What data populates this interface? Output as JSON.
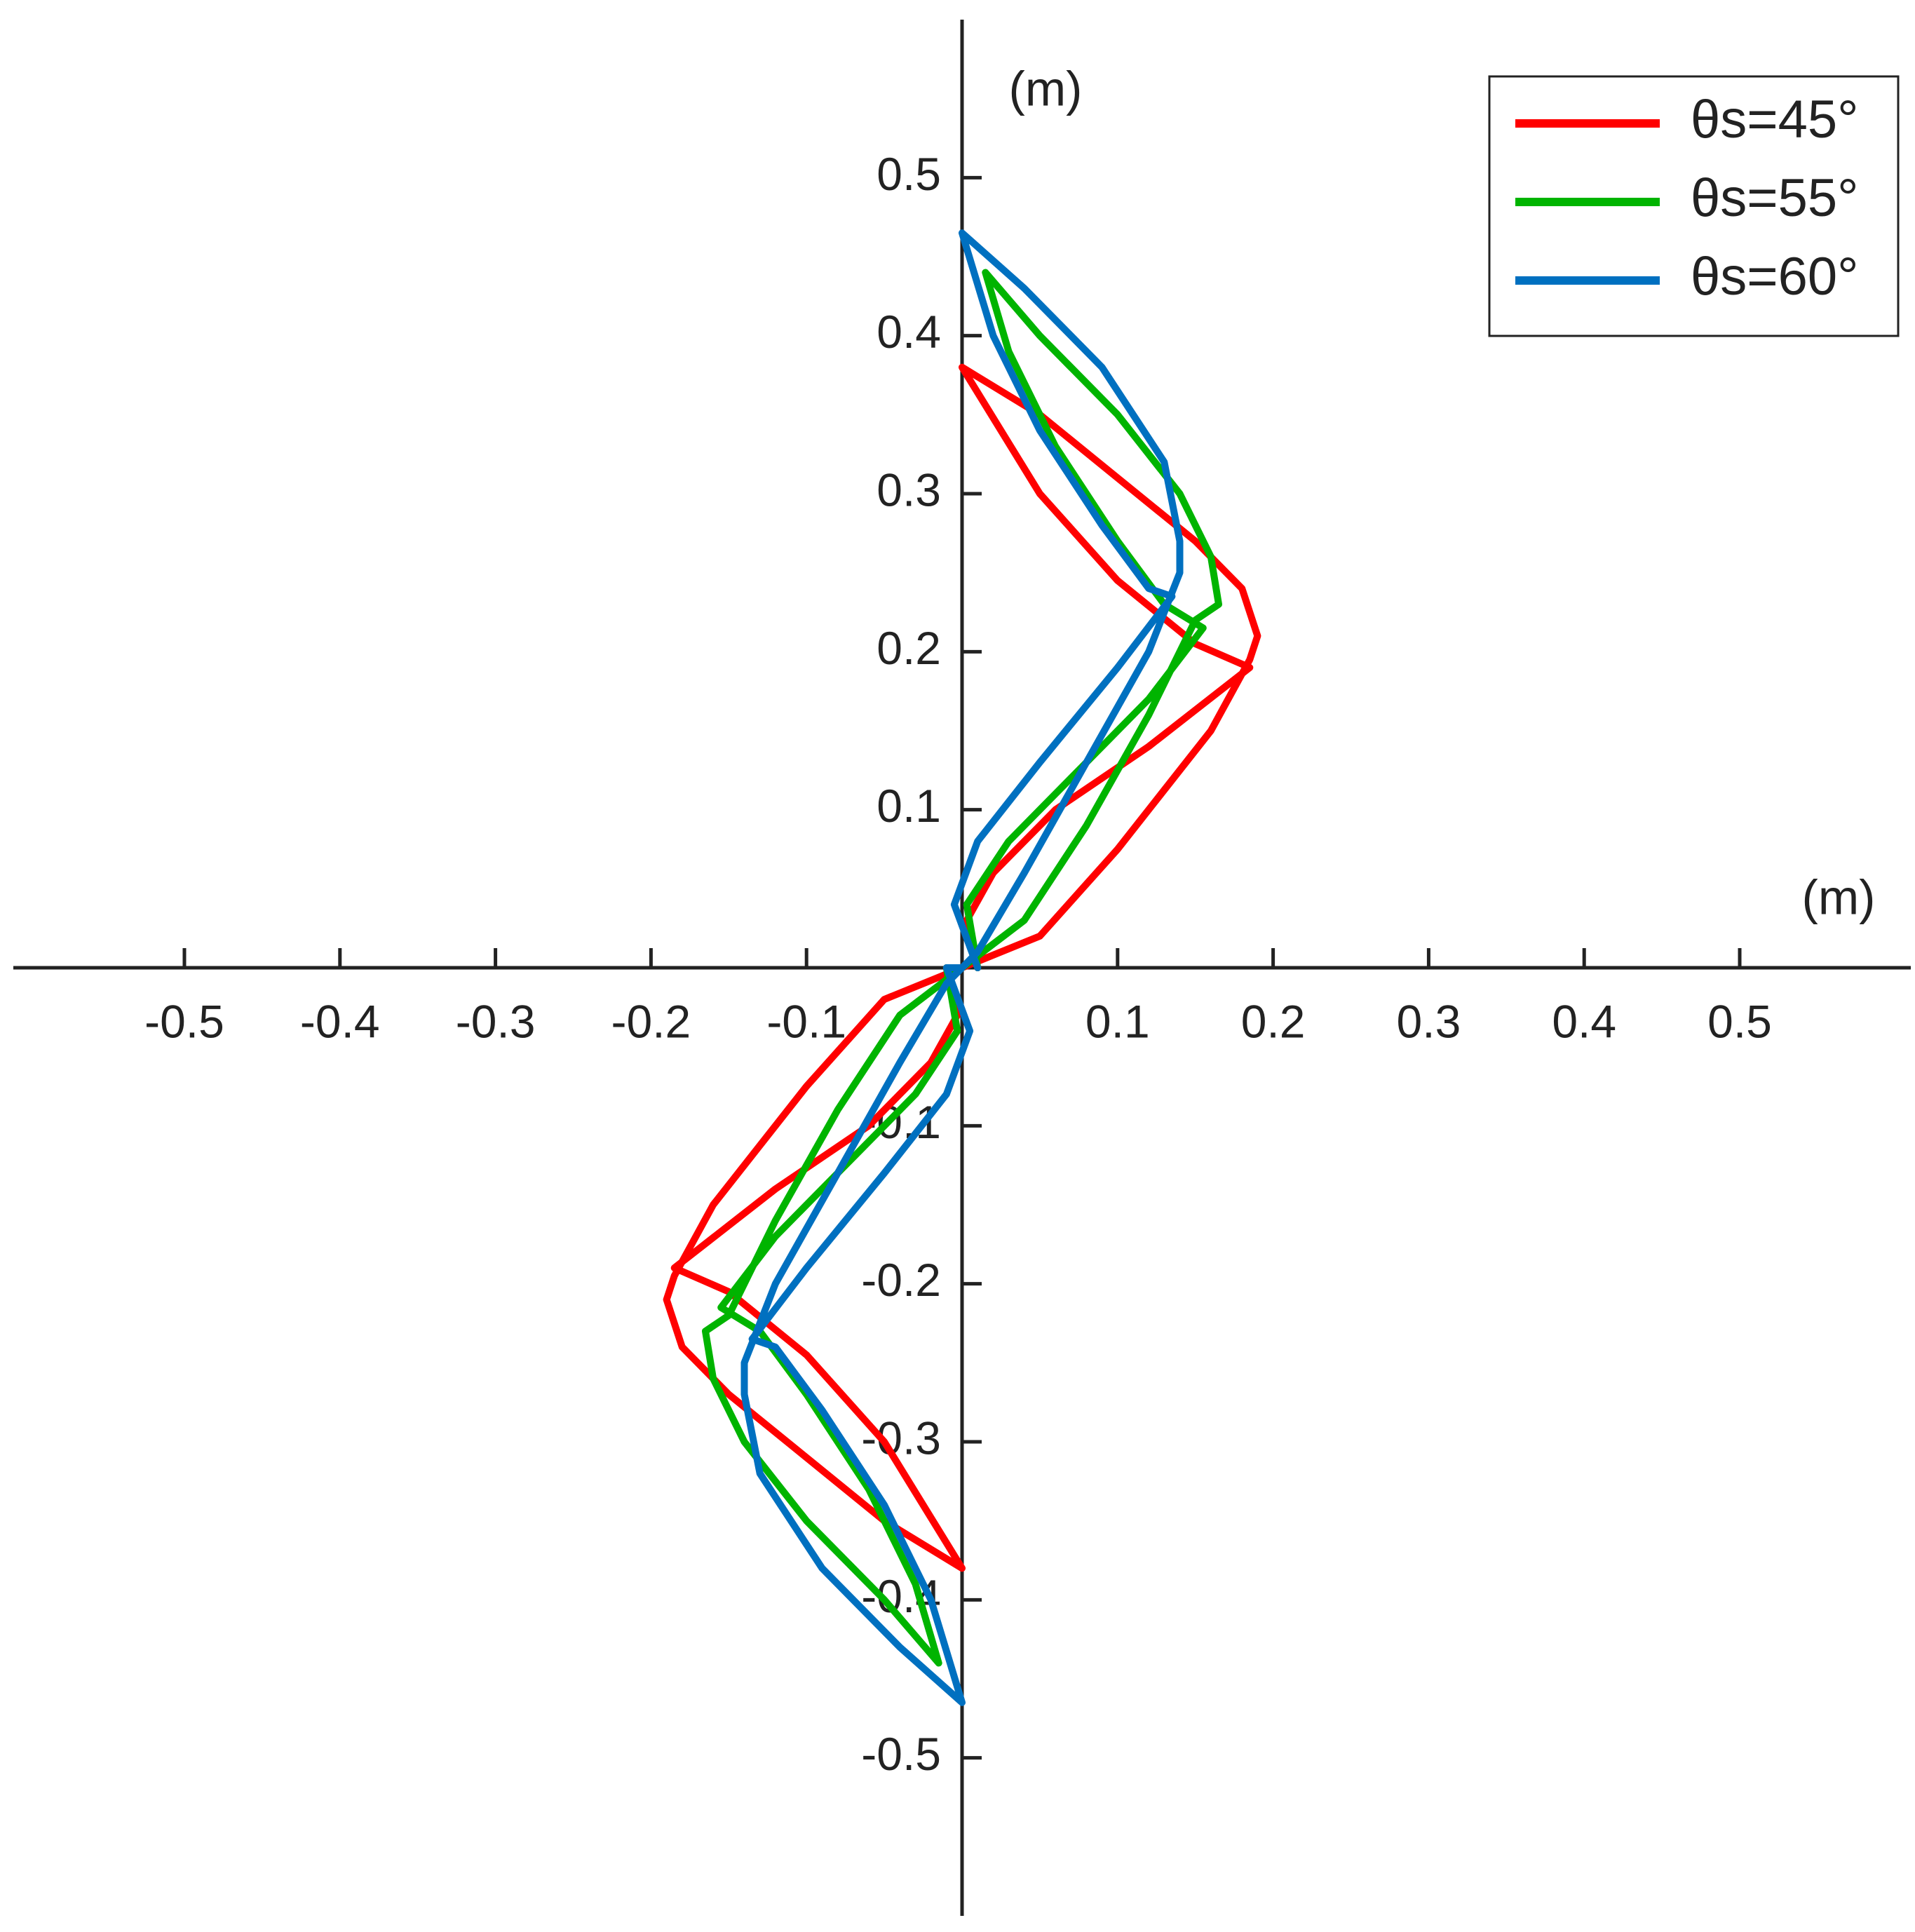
{
  "chart_data": {
    "type": "line",
    "x_label": "(m)",
    "y_label": "(m)",
    "xlim": [
      -0.61,
      0.61
    ],
    "ylim": [
      -0.6,
      0.6
    ],
    "xticks": [
      -0.5,
      -0.4,
      -0.3,
      -0.2,
      -0.1,
      0.1,
      0.2,
      0.3,
      0.4,
      0.5
    ],
    "yticks": [
      -0.5,
      -0.4,
      -0.3,
      -0.2,
      -0.1,
      0.1,
      0.2,
      0.3,
      0.4,
      0.5
    ],
    "legend": "upper right",
    "series": [
      {
        "name": "θs=45°",
        "color": "#ff0000",
        "x": [
          0.01,
          0.003,
          0.02,
          0.06,
          0.12,
          0.185,
          0.15,
          0.1,
          0.05,
          0,
          0.05,
          0.1,
          0.15,
          0.18,
          0.19,
          0.185,
          0.16,
          0.1,
          0.05,
          0,
          -0.01,
          -0.003,
          -0.02,
          -0.06,
          -0.12,
          -0.185,
          -0.15,
          -0.1,
          -0.05,
          0,
          -0.05,
          -0.1,
          -0.15,
          -0.18,
          -0.19,
          -0.185,
          -0.16,
          -0.1,
          -0.05,
          0
        ],
        "values": [
          0,
          0.03,
          0.06,
          0.1,
          0.14,
          0.19,
          0.205,
          0.245,
          0.3,
          0.38,
          0.35,
          0.31,
          0.27,
          0.24,
          0.21,
          0.195,
          0.15,
          0.075,
          0.02,
          0,
          0,
          -0.03,
          -0.06,
          -0.1,
          -0.14,
          -0.19,
          -0.205,
          -0.245,
          -0.3,
          -0.38,
          -0.35,
          -0.31,
          -0.27,
          -0.24,
          -0.21,
          -0.195,
          -0.15,
          -0.075,
          -0.02,
          0
        ]
      },
      {
        "name": "θs=55°",
        "color": "#00b400",
        "x": [
          0.01,
          0.003,
          0.03,
          0.08,
          0.12,
          0.155,
          0.13,
          0.1,
          0.06,
          0.03,
          0.015,
          0.05,
          0.1,
          0.14,
          0.16,
          0.165,
          0.15,
          0.12,
          0.08,
          0.04,
          0,
          -0.01,
          -0.003,
          -0.03,
          -0.08,
          -0.12,
          -0.155,
          -0.13,
          -0.1,
          -0.06,
          -0.03,
          -0.015,
          -0.05,
          -0.1,
          -0.14,
          -0.16,
          -0.165,
          -0.15,
          -0.12,
          -0.08,
          -0.04,
          0
        ],
        "values": [
          0,
          0.04,
          0.08,
          0.13,
          0.17,
          0.215,
          0.23,
          0.27,
          0.33,
          0.39,
          0.44,
          0.4,
          0.35,
          0.3,
          0.26,
          0.23,
          0.22,
          0.16,
          0.09,
          0.03,
          0,
          0,
          -0.04,
          -0.08,
          -0.13,
          -0.17,
          -0.215,
          -0.23,
          -0.27,
          -0.33,
          -0.39,
          -0.44,
          -0.4,
          -0.35,
          -0.3,
          -0.26,
          -0.23,
          -0.22,
          -0.16,
          -0.09,
          -0.03,
          0
        ]
      },
      {
        "name": "θs=60°",
        "color": "#0070c0",
        "x": [
          0.01,
          -0.005,
          0.01,
          0.05,
          0.1,
          0.135,
          0.12,
          0.09,
          0.05,
          0.02,
          0,
          0.04,
          0.09,
          0.13,
          0.14,
          0.14,
          0.12,
          0.08,
          0.04,
          0.01,
          0,
          -0.01,
          0.005,
          -0.01,
          -0.05,
          -0.1,
          -0.135,
          -0.12,
          -0.09,
          -0.05,
          -0.02,
          0,
          -0.04,
          -0.09,
          -0.13,
          -0.14,
          -0.14,
          -0.12,
          -0.08,
          -0.04,
          -0.01,
          0
        ],
        "values": [
          0,
          0.04,
          0.08,
          0.13,
          0.19,
          0.235,
          0.24,
          0.28,
          0.34,
          0.4,
          0.465,
          0.43,
          0.38,
          0.32,
          0.27,
          0.25,
          0.2,
          0.13,
          0.06,
          0.01,
          0,
          0,
          -0.04,
          -0.08,
          -0.13,
          -0.19,
          -0.235,
          -0.24,
          -0.28,
          -0.34,
          -0.4,
          -0.465,
          -0.43,
          -0.38,
          -0.32,
          -0.27,
          -0.25,
          -0.2,
          -0.13,
          -0.06,
          -0.01,
          0
        ]
      }
    ]
  }
}
